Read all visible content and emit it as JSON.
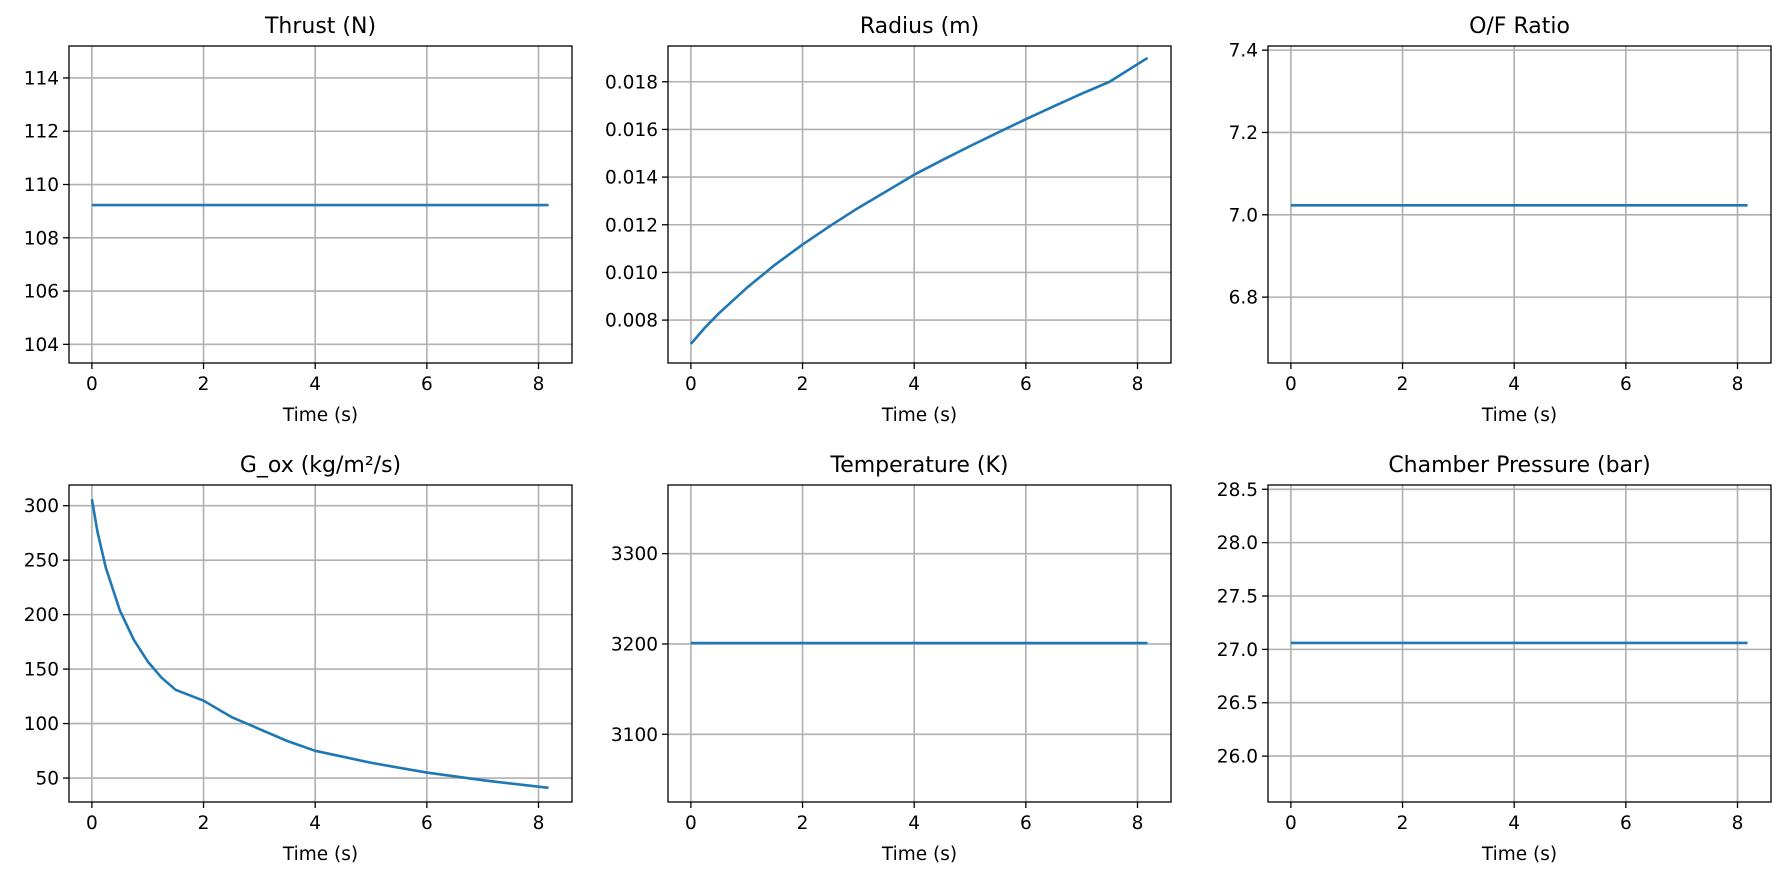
{
  "chart_data": [
    {
      "type": "line",
      "title": "Thrust (N)",
      "xlabel": "Time (s)",
      "ylabel": "",
      "xlim": [
        -0.41,
        8.6
      ],
      "ylim": [
        103.3,
        115.2
      ],
      "xticks": [
        0,
        2,
        4,
        6,
        8
      ],
      "yticks": [
        104,
        106,
        108,
        110,
        112,
        114
      ],
      "ytick_decimals": 0,
      "grid": true,
      "series": [
        {
          "color": "#1f77b4",
          "x": [
            0,
            8.18
          ],
          "y": [
            109.23,
            109.23
          ]
        }
      ]
    },
    {
      "type": "line",
      "title": "Radius (m)",
      "xlabel": "Time (s)",
      "ylabel": "",
      "xlim": [
        -0.41,
        8.6
      ],
      "ylim": [
        0.0062,
        0.0195
      ],
      "xticks": [
        0,
        2,
        4,
        6,
        8
      ],
      "yticks": [
        0.008,
        0.01,
        0.012,
        0.014,
        0.016,
        0.018
      ],
      "ytick_decimals": 3,
      "grid": true,
      "series": [
        {
          "color": "#1f77b4",
          "x": [
            0,
            0.25,
            0.5,
            1,
            1.5,
            2,
            2.5,
            3,
            3.5,
            4,
            4.5,
            5,
            5.5,
            6,
            6.5,
            7,
            7.5,
            8.18
          ],
          "y": [
            0.007,
            0.00768,
            0.00828,
            0.00935,
            0.01031,
            0.01117,
            0.01196,
            0.01271,
            0.0134,
            0.0141,
            0.01471,
            0.0153,
            0.01587,
            0.01643,
            0.01697,
            0.0175,
            0.018,
            0.019
          ]
        }
      ]
    },
    {
      "type": "line",
      "title": "O/F Ratio",
      "xlabel": "Time (s)",
      "ylabel": "",
      "xlim": [
        -0.41,
        8.6
      ],
      "ylim": [
        6.64,
        7.41
      ],
      "xticks": [
        0,
        2,
        4,
        6,
        8
      ],
      "yticks": [
        6.8,
        7.0,
        7.2,
        7.4
      ],
      "ytick_decimals": 1,
      "grid": true,
      "series": [
        {
          "color": "#1f77b4",
          "x": [
            0,
            8.18
          ],
          "y": [
            7.023,
            7.023
          ]
        }
      ]
    },
    {
      "type": "line",
      "title": "G_ox (kg/m²/s)",
      "xlabel": "Time (s)",
      "ylabel": "",
      "xlim": [
        -0.41,
        8.6
      ],
      "ylim": [
        28,
        319
      ],
      "xticks": [
        0,
        2,
        4,
        6,
        8
      ],
      "yticks": [
        50,
        100,
        150,
        200,
        250,
        300
      ],
      "ytick_decimals": 0,
      "grid": true,
      "series": [
        {
          "color": "#1f77b4",
          "x": [
            0,
            0.1,
            0.25,
            0.5,
            0.75,
            1,
            1.25,
            1.5,
            2,
            2.5,
            3,
            3.5,
            4,
            5,
            6,
            7,
            8.18
          ],
          "y": [
            306,
            276,
            243,
            204,
            177,
            157,
            142,
            131,
            121,
            106,
            95,
            84,
            75,
            64,
            55,
            48,
            41
          ]
        }
      ]
    },
    {
      "type": "line",
      "title": "Temperature (K)",
      "xlabel": "Time (s)",
      "ylabel": "",
      "xlim": [
        -0.41,
        8.6
      ],
      "ylim": [
        3025,
        3376
      ],
      "xticks": [
        0,
        2,
        4,
        6,
        8
      ],
      "yticks": [
        3100,
        3200,
        3300
      ],
      "ytick_decimals": 0,
      "grid": true,
      "series": [
        {
          "color": "#1f77b4",
          "x": [
            0,
            8.18
          ],
          "y": [
            3201,
            3201
          ]
        }
      ]
    },
    {
      "type": "line",
      "title": "Chamber Pressure (bar)",
      "xlabel": "Time (s)",
      "ylabel": "",
      "xlim": [
        -0.41,
        8.6
      ],
      "ylim": [
        25.57,
        28.54
      ],
      "xticks": [
        0,
        2,
        4,
        6,
        8
      ],
      "yticks": [
        26.0,
        26.5,
        27.0,
        27.5,
        28.0,
        28.5
      ],
      "ytick_decimals": 1,
      "grid": true,
      "series": [
        {
          "color": "#1f77b4",
          "x": [
            0,
            8.18
          ],
          "y": [
            27.06,
            27.06
          ]
        }
      ]
    }
  ]
}
